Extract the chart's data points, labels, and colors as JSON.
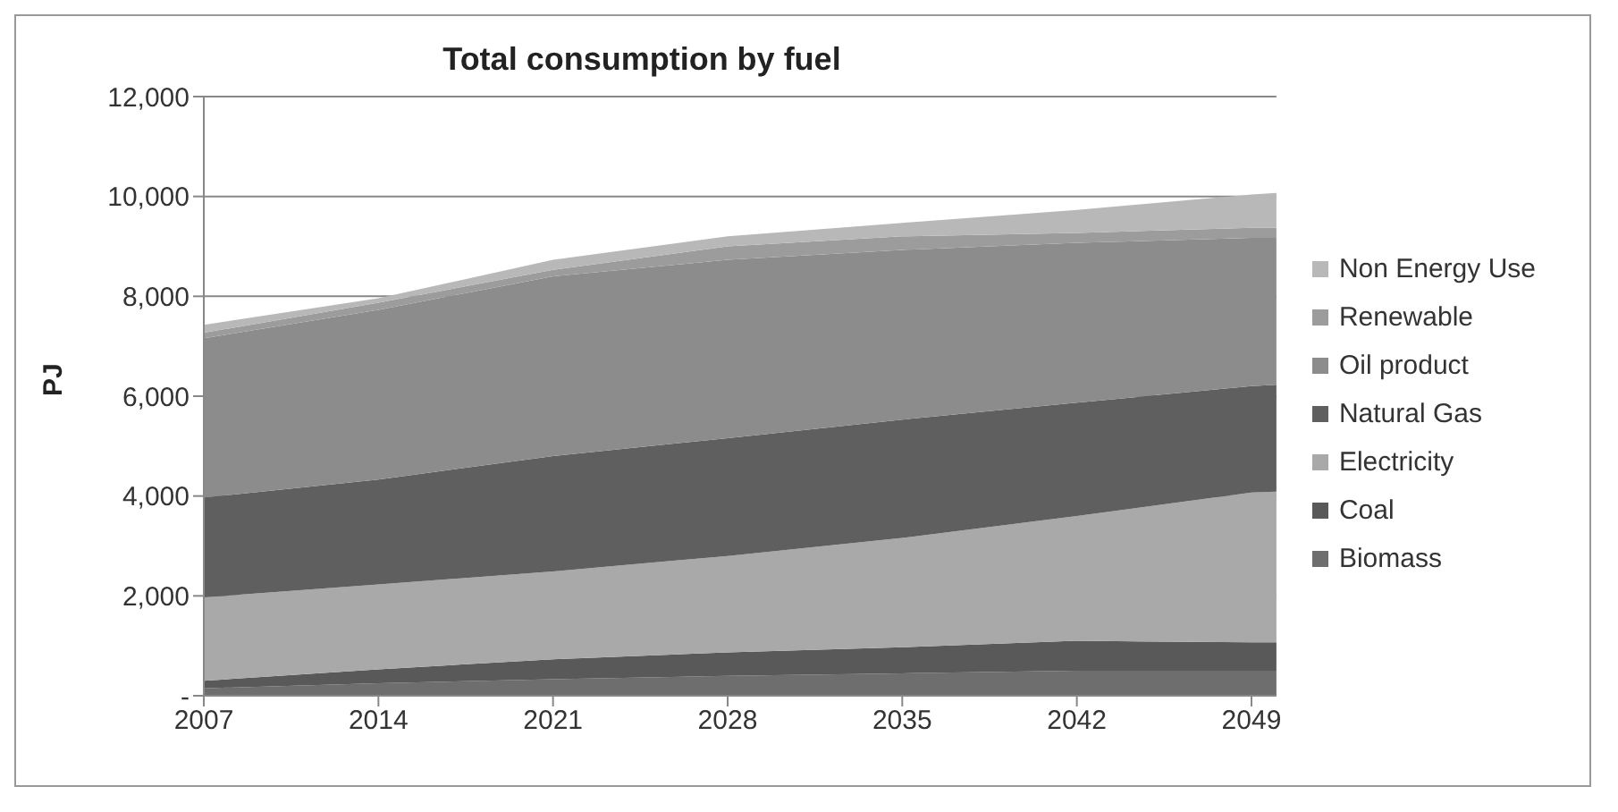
{
  "chart_data": {
    "type": "area",
    "stacked": true,
    "title": "Total consumption by fuel",
    "ylabel": "PJ",
    "x": [
      2007,
      2014,
      2021,
      2028,
      2035,
      2042,
      2049,
      2050
    ],
    "xlim": [
      2007,
      2050
    ],
    "xticks": [
      2007,
      2014,
      2021,
      2028,
      2035,
      2042,
      2049
    ],
    "ylim": [
      0,
      12000
    ],
    "yticks": [
      {
        "value": 0,
        "label": "-"
      },
      {
        "value": 2000,
        "label": "2,000"
      },
      {
        "value": 4000,
        "label": "4,000"
      },
      {
        "value": 6000,
        "label": "6,000"
      },
      {
        "value": 8000,
        "label": "8,000"
      },
      {
        "value": 10000,
        "label": "10,000"
      },
      {
        "value": 12000,
        "label": "12,000"
      }
    ],
    "grid": "y",
    "legend": "right",
    "series": [
      {
        "name": "Biomass",
        "color": "#6e6e6e",
        "values": [
          150,
          250,
          330,
          400,
          450,
          500,
          500,
          500
        ]
      },
      {
        "name": "Coal",
        "color": "#595959",
        "values": [
          150,
          280,
          400,
          470,
          520,
          600,
          570,
          570
        ]
      },
      {
        "name": "Electricity",
        "color": "#a9a9a9",
        "values": [
          1670,
          1700,
          1760,
          1930,
          2190,
          2500,
          3000,
          3020
        ]
      },
      {
        "name": "Natural Gas",
        "color": "#5f5f5f",
        "values": [
          2000,
          2100,
          2310,
          2360,
          2370,
          2270,
          2130,
          2140
        ]
      },
      {
        "name": "Oil product",
        "color": "#8c8c8c",
        "values": [
          3190,
          3400,
          3600,
          3570,
          3400,
          3200,
          2970,
          2940
        ]
      },
      {
        "name": "Renewable",
        "color": "#9c9c9c",
        "values": [
          110,
          140,
          130,
          270,
          270,
          200,
          200,
          200
        ]
      },
      {
        "name": "Non Energy Use",
        "color": "#b8b8b8",
        "values": [
          160,
          90,
          200,
          200,
          270,
          460,
          670,
          700
        ]
      }
    ]
  }
}
